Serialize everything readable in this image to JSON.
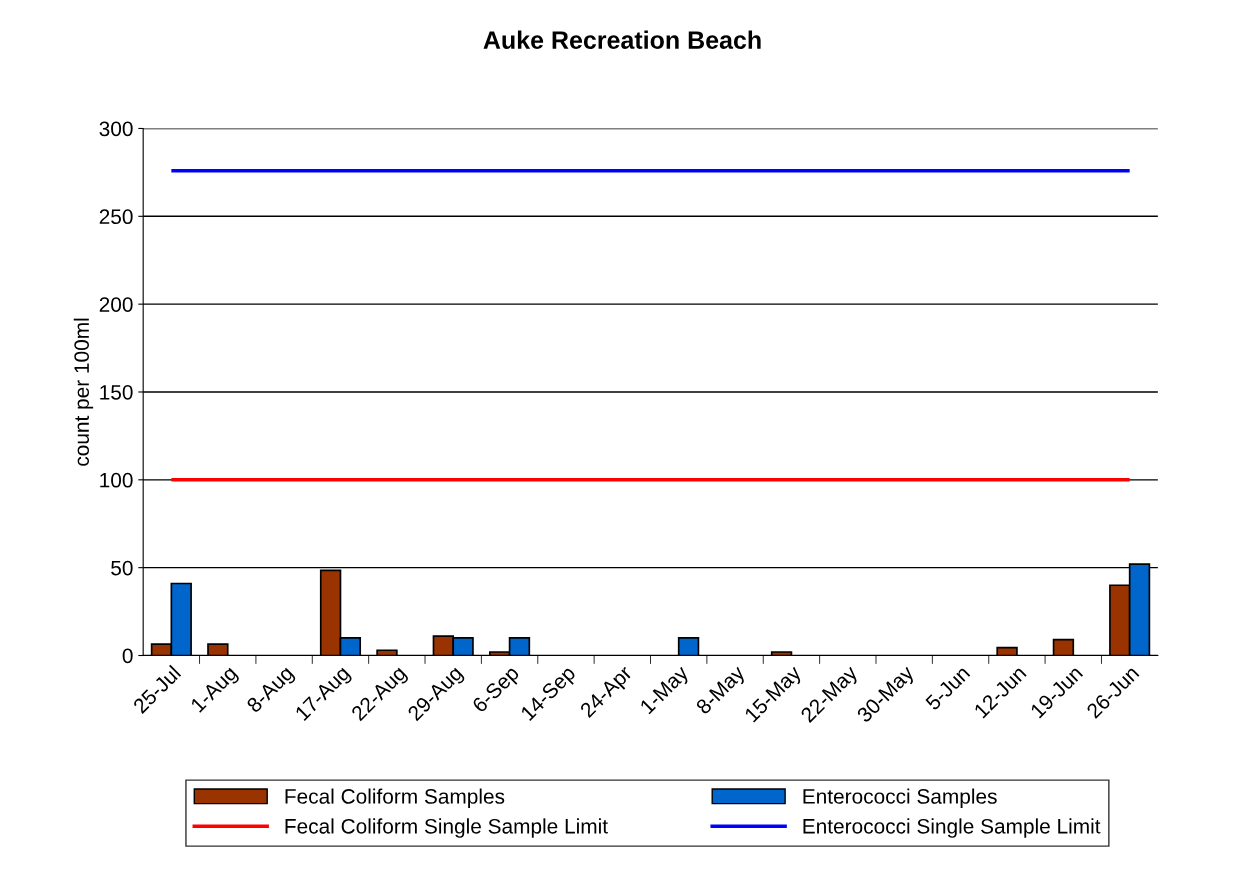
{
  "chart_data": {
    "type": "bar",
    "title": "Auke Recreation Beach",
    "ylabel": "count per 100ml",
    "categories": [
      "25-Jul",
      "1-Aug",
      "8-Aug",
      "17-Aug",
      "22-Aug",
      "29-Aug",
      "6-Sep",
      "14-Sep",
      "24-Apr",
      "1-May",
      "8-May",
      "15-May",
      "22-May",
      "30-May",
      "5-Jun",
      "12-Jun",
      "19-Jun",
      "26-Jun"
    ],
    "series": [
      {
        "name": "Fecal Coliform Samples",
        "color": "#993300",
        "values": [
          6.5,
          6.5,
          null,
          48.5,
          3,
          11,
          2,
          null,
          null,
          null,
          null,
          2,
          null,
          null,
          null,
          4.5,
          9,
          40
        ]
      },
      {
        "name": "Enterococci Samples",
        "color": "#0066cc",
        "values": [
          41,
          null,
          null,
          10,
          null,
          10,
          10,
          null,
          null,
          10,
          null,
          null,
          null,
          null,
          null,
          null,
          null,
          52
        ]
      }
    ],
    "ref_lines": [
      {
        "axis": "y",
        "value": 100,
        "label": "Fecal Coliform Single Sample Limit",
        "color": "#ff0000"
      },
      {
        "axis": "y",
        "value": 276,
        "label": "Enterococci Single Sample Limit",
        "color": "#0000ff"
      }
    ],
    "ylim": [
      0,
      300
    ],
    "yticks": [
      0,
      50,
      100,
      150,
      200,
      250,
      300
    ],
    "grid": "y",
    "legend": "bottom"
  }
}
